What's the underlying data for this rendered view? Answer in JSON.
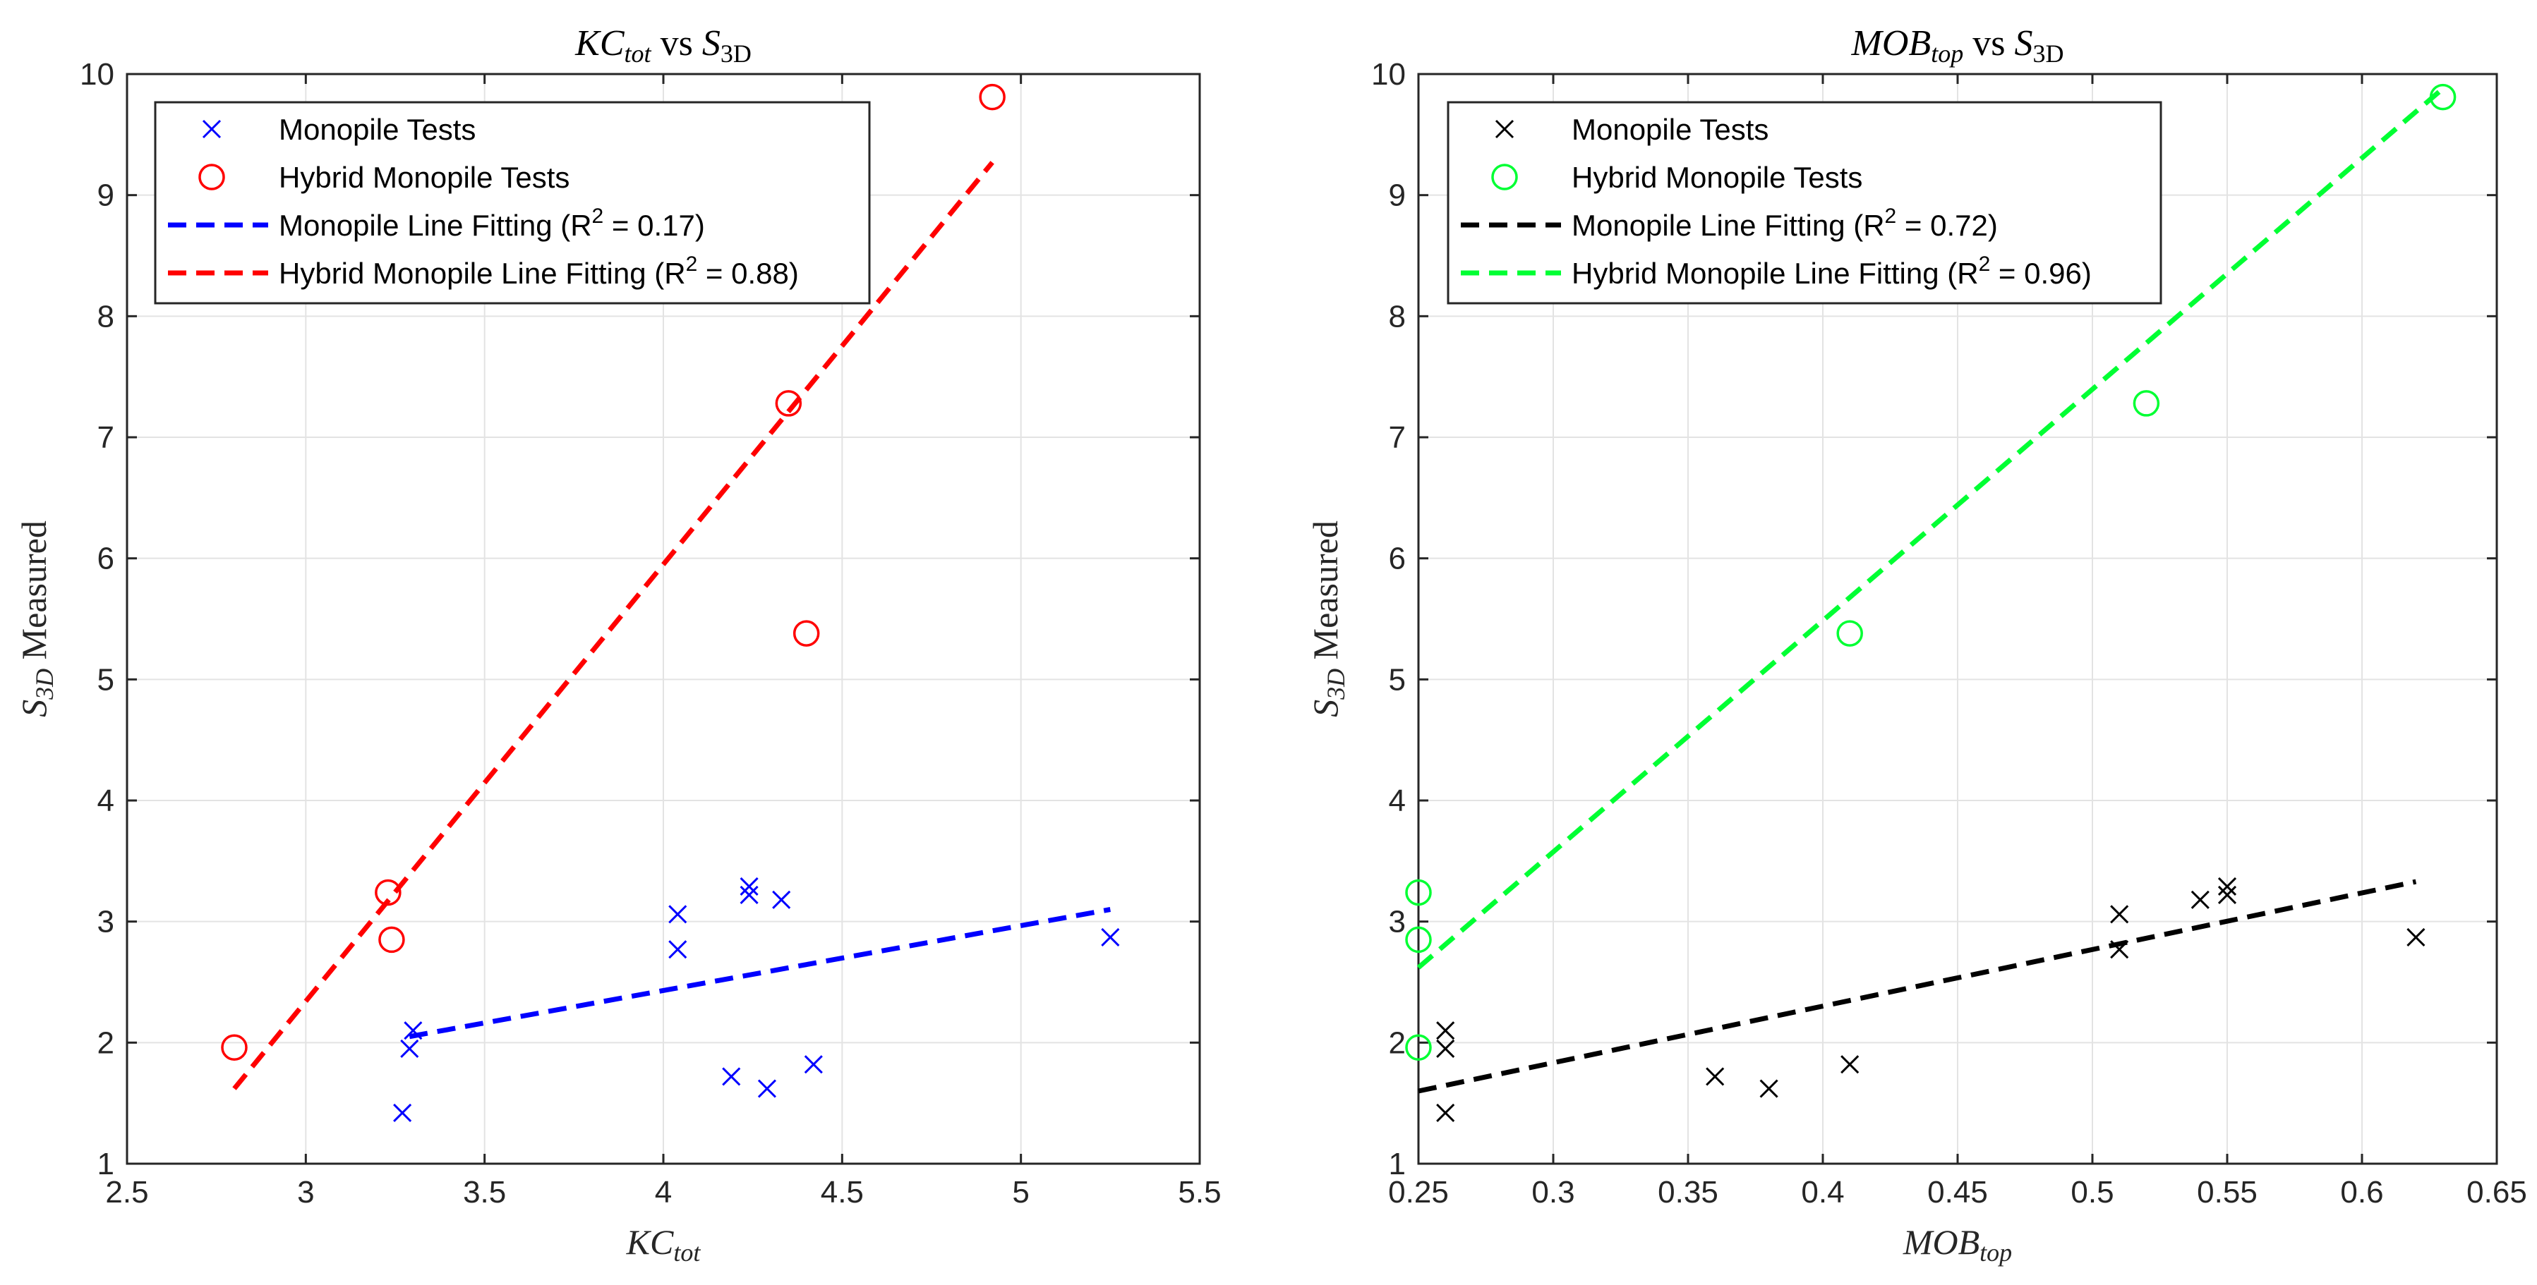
{
  "chart_data": [
    {
      "type": "scatter",
      "title": "KC_tot vs S_3D",
      "title_parts": {
        "x_base": "KC",
        "x_sub": "tot",
        "vs": "vs",
        "y_base": "S",
        "y_sub": "3D"
      },
      "xlabel": "KC_tot",
      "xlabel_parts": {
        "base": "KC",
        "sub": "tot"
      },
      "ylabel": "S_3D Measured",
      "ylabel_parts": {
        "base": "S",
        "sub": "3D",
        "rest": "Measured"
      },
      "xlim": [
        2.5,
        5.5
      ],
      "ylim": [
        1,
        10
      ],
      "xticks": [
        2.5,
        3,
        3.5,
        4,
        4.5,
        5,
        5.5
      ],
      "xtick_labels": [
        "2.5",
        "3",
        "3.5",
        "4",
        "4.5",
        "5",
        "5.5"
      ],
      "yticks": [
        1,
        2,
        3,
        4,
        5,
        6,
        7,
        8,
        9,
        10
      ],
      "ytick_labels": [
        "1",
        "2",
        "3",
        "4",
        "5",
        "6",
        "7",
        "8",
        "9",
        "10"
      ],
      "grid": true,
      "legend_position": "top-left",
      "series": [
        {
          "name": "Monopile Tests",
          "kind": "marker",
          "marker": "x",
          "color": "#0000ff",
          "points": [
            [
              3.27,
              1.42
            ],
            [
              3.29,
              1.95
            ],
            [
              3.3,
              2.1
            ],
            [
              4.04,
              3.06
            ],
            [
              4.04,
              2.77
            ],
            [
              4.19,
              1.72
            ],
            [
              4.24,
              3.29
            ],
            [
              4.24,
              3.22
            ],
            [
              4.29,
              1.62
            ],
            [
              4.33,
              3.18
            ],
            [
              4.42,
              1.82
            ],
            [
              5.25,
              2.87
            ]
          ]
        },
        {
          "name": "Hybrid Monopile Tests",
          "kind": "marker",
          "marker": "o",
          "color": "#ff0000",
          "points": [
            [
              2.8,
              1.96
            ],
            [
              3.23,
              3.24
            ],
            [
              3.24,
              2.85
            ],
            [
              4.35,
              7.28
            ],
            [
              4.4,
              5.38
            ],
            [
              4.92,
              9.81
            ]
          ]
        },
        {
          "name": "Monopile Line Fitting (R",
          "superscript": "2",
          "name_suffix": " = 0.17)",
          "kind": "dashed-line",
          "color": "#0000ff",
          "points": [
            [
              3.29,
              2.05
            ],
            [
              5.25,
              3.1
            ]
          ]
        },
        {
          "name": "Hybrid Monopile Line Fitting (R",
          "superscript": "2",
          "name_suffix": " = 0.88)",
          "kind": "dashed-line",
          "color": "#ff0000",
          "points": [
            [
              2.8,
              1.62
            ],
            [
              4.92,
              9.27
            ]
          ]
        }
      ]
    },
    {
      "type": "scatter",
      "title": "MOB_top vs S_3D",
      "title_parts": {
        "x_base": "MOB",
        "x_sub": "top",
        "vs": "vs",
        "y_base": "S",
        "y_sub": "3D"
      },
      "xlabel": "MOB_top",
      "xlabel_parts": {
        "base": "MOB",
        "sub": "top"
      },
      "ylabel": "S_3D Measured",
      "ylabel_parts": {
        "base": "S",
        "sub": "3D",
        "rest": "Measured"
      },
      "xlim": [
        0.25,
        0.65
      ],
      "ylim": [
        1,
        10
      ],
      "xticks": [
        0.25,
        0.3,
        0.35,
        0.4,
        0.45,
        0.5,
        0.55,
        0.6,
        0.65
      ],
      "xtick_labels": [
        "0.25",
        "0.3",
        "0.35",
        "0.4",
        "0.45",
        "0.5",
        "0.55",
        "0.6",
        "0.65"
      ],
      "yticks": [
        1,
        2,
        3,
        4,
        5,
        6,
        7,
        8,
        9,
        10
      ],
      "ytick_labels": [
        "1",
        "2",
        "3",
        "4",
        "5",
        "6",
        "7",
        "8",
        "9",
        "10"
      ],
      "grid": true,
      "legend_position": "top-left",
      "series": [
        {
          "name": "Monopile Tests",
          "kind": "marker",
          "marker": "x",
          "color": "#000000",
          "points": [
            [
              0.26,
              1.42
            ],
            [
              0.26,
              1.95
            ],
            [
              0.26,
              2.1
            ],
            [
              0.36,
              1.72
            ],
            [
              0.38,
              1.62
            ],
            [
              0.41,
              1.82
            ],
            [
              0.51,
              3.06
            ],
            [
              0.51,
              2.77
            ],
            [
              0.54,
              3.18
            ],
            [
              0.55,
              3.22
            ],
            [
              0.55,
              3.29
            ],
            [
              0.62,
              2.87
            ]
          ]
        },
        {
          "name": "Hybrid Monopile Tests",
          "kind": "marker",
          "marker": "o",
          "color": "#00ff33",
          "points": [
            [
              0.25,
              1.96
            ],
            [
              0.25,
              3.24
            ],
            [
              0.25,
              2.85
            ],
            [
              0.41,
              5.38
            ],
            [
              0.52,
              7.28
            ],
            [
              0.63,
              9.81
            ]
          ]
        },
        {
          "name": "Monopile Line Fitting (R",
          "superscript": "2",
          "name_suffix": " = 0.72)",
          "kind": "dashed-line",
          "color": "#000000",
          "points": [
            [
              0.25,
              1.6
            ],
            [
              0.62,
              3.33
            ]
          ]
        },
        {
          "name": "Hybrid Monopile Line Fitting (R",
          "superscript": "2",
          "name_suffix": " = 0.96)",
          "kind": "dashed-line",
          "color": "#00ff33",
          "points": [
            [
              0.25,
              2.62
            ],
            [
              0.63,
              9.88
            ]
          ]
        }
      ]
    }
  ]
}
